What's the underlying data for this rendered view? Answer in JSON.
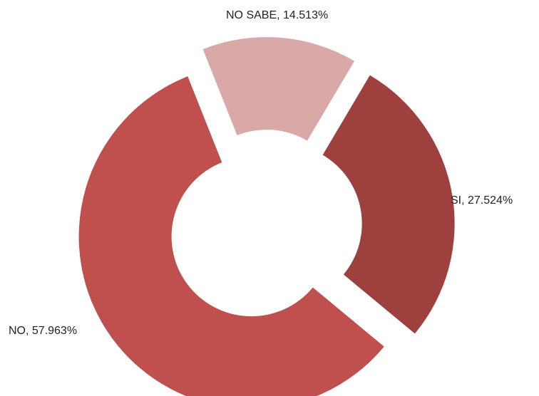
{
  "chart_data": {
    "type": "doughnut",
    "categories": [
      "SI",
      "NO",
      "NO SABE"
    ],
    "values": [
      27.524,
      57.963,
      14.513
    ],
    "value_labels": [
      "SI, 27.524%",
      "NO, 57.963%",
      "NO SABE, 14.513%"
    ],
    "colors": [
      "#9e413e",
      "#c0504d",
      "#d9a9a8"
    ]
  }
}
